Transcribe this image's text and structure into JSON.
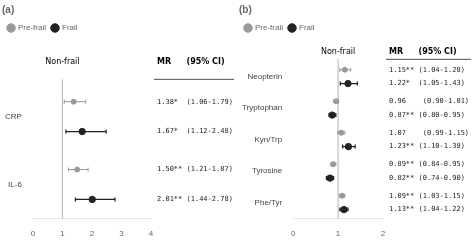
{
  "chart_data": [
    {
      "type": "forest",
      "title": "(a)",
      "reference_line": 1.0,
      "reference_label": "Non-frail",
      "column_headers": [
        "MR",
        "(95% CI)"
      ],
      "categories": [
        "CRP",
        "IL-6"
      ],
      "series": [
        {
          "name": "Pre-frail",
          "color": "#999999",
          "values": [
            1.38,
            1.5
          ],
          "ci_lo": [
            1.06,
            1.21
          ],
          "ci_hi": [
            1.79,
            1.87
          ],
          "value_labels": [
            "1.38*  (1.06-1.79)",
            "1.50** (1.21-1.87)"
          ]
        },
        {
          "name": "Frail",
          "color": "#222222",
          "values": [
            1.67,
            2.01
          ],
          "ci_lo": [
            1.12,
            1.44
          ],
          "ci_hi": [
            2.48,
            2.78
          ],
          "value_labels": [
            "1.67*  (1.12-2.48)",
            "2.01** (1.44-2.78)"
          ]
        }
      ],
      "xlim": [
        0,
        4
      ],
      "xticks": [
        0,
        1,
        2,
        3,
        4
      ],
      "grid": false,
      "legend": "upper left",
      "data_labels": true
    },
    {
      "type": "forest",
      "title": "(b)",
      "reference_line": 1.0,
      "reference_label": "Non-frail",
      "column_headers": [
        "MR",
        "(95% CI)"
      ],
      "categories": [
        "Neopterin",
        "Tryptophan",
        "Kyn/Trp",
        "Tyrosine",
        "Phe/Tyr"
      ],
      "series": [
        {
          "name": "Pre-frail",
          "color": "#999999",
          "values": [
            1.15,
            0.96,
            1.07,
            0.89,
            1.09
          ],
          "ci_lo": [
            1.04,
            0.9,
            0.99,
            0.84,
            1.03
          ],
          "ci_hi": [
            1.28,
            1.01,
            1.15,
            0.95,
            1.15
          ],
          "value_labels": [
            "1.15** (1.04-1.28)",
            "0.96    (0.90-1.01)",
            "1.07    (0.99-1.15)",
            "0.89** (0.84-0.95)",
            "1.09** (1.03-1.15)"
          ]
        },
        {
          "name": "Frail",
          "color": "#222222",
          "values": [
            1.22,
            0.87,
            1.23,
            0.82,
            1.13
          ],
          "ci_lo": [
            1.05,
            0.8,
            1.1,
            0.74,
            1.04
          ],
          "ci_hi": [
            1.43,
            0.95,
            1.38,
            0.9,
            1.22
          ],
          "value_labels": [
            "1.22*  (1.05-1.43)",
            "0.87** (0.80-0.95)",
            "1.23** (1.10-1.38)",
            "0.82** (0.74-0.90)",
            "1.13** (1.04-1.22)"
          ]
        }
      ],
      "xlim": [
        0,
        2
      ],
      "xticks": [
        0,
        1,
        2
      ],
      "grid": false,
      "legend": "upper left",
      "data_labels": true
    }
  ]
}
